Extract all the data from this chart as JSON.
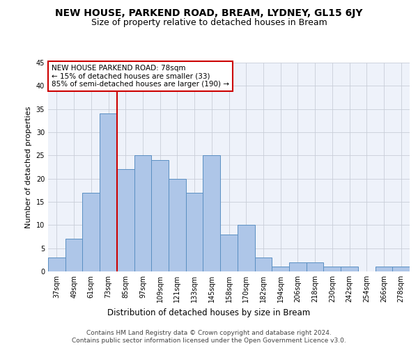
{
  "title1": "NEW HOUSE, PARKEND ROAD, BREAM, LYDNEY, GL15 6JY",
  "title2": "Size of property relative to detached houses in Bream",
  "xlabel": "Distribution of detached houses by size in Bream",
  "ylabel": "Number of detached properties",
  "categories": [
    "37sqm",
    "49sqm",
    "61sqm",
    "73sqm",
    "85sqm",
    "97sqm",
    "109sqm",
    "121sqm",
    "133sqm",
    "145sqm",
    "158sqm",
    "170sqm",
    "182sqm",
    "194sqm",
    "206sqm",
    "218sqm",
    "230sqm",
    "242sqm",
    "254sqm",
    "266sqm",
    "278sqm"
  ],
  "values": [
    3,
    7,
    17,
    34,
    22,
    25,
    24,
    20,
    17,
    25,
    8,
    10,
    3,
    1,
    2,
    2,
    1,
    1,
    0,
    1,
    1
  ],
  "bar_color": "#aec6e8",
  "bar_edge_color": "#5a8fc2",
  "vline_x": 3.5,
  "vline_color": "#cc0000",
  "ylim": [
    0,
    45
  ],
  "yticks": [
    0,
    5,
    10,
    15,
    20,
    25,
    30,
    35,
    40,
    45
  ],
  "annotation_title": "NEW HOUSE PARKEND ROAD: 78sqm",
  "annotation_line1": "← 15% of detached houses are smaller (33)",
  "annotation_line2": "85% of semi-detached houses are larger (190) →",
  "annotation_box_color": "#ffffff",
  "annotation_box_edge": "#cc0000",
  "footer1": "Contains HM Land Registry data © Crown copyright and database right 2024.",
  "footer2": "Contains public sector information licensed under the Open Government Licence v3.0.",
  "bg_color": "#eef2fa",
  "grid_color": "#c8cdd8",
  "title1_fontsize": 10,
  "title2_fontsize": 9,
  "xlabel_fontsize": 8.5,
  "ylabel_fontsize": 8,
  "tick_fontsize": 7,
  "footer_fontsize": 6.5,
  "ann_fontsize": 7.5
}
